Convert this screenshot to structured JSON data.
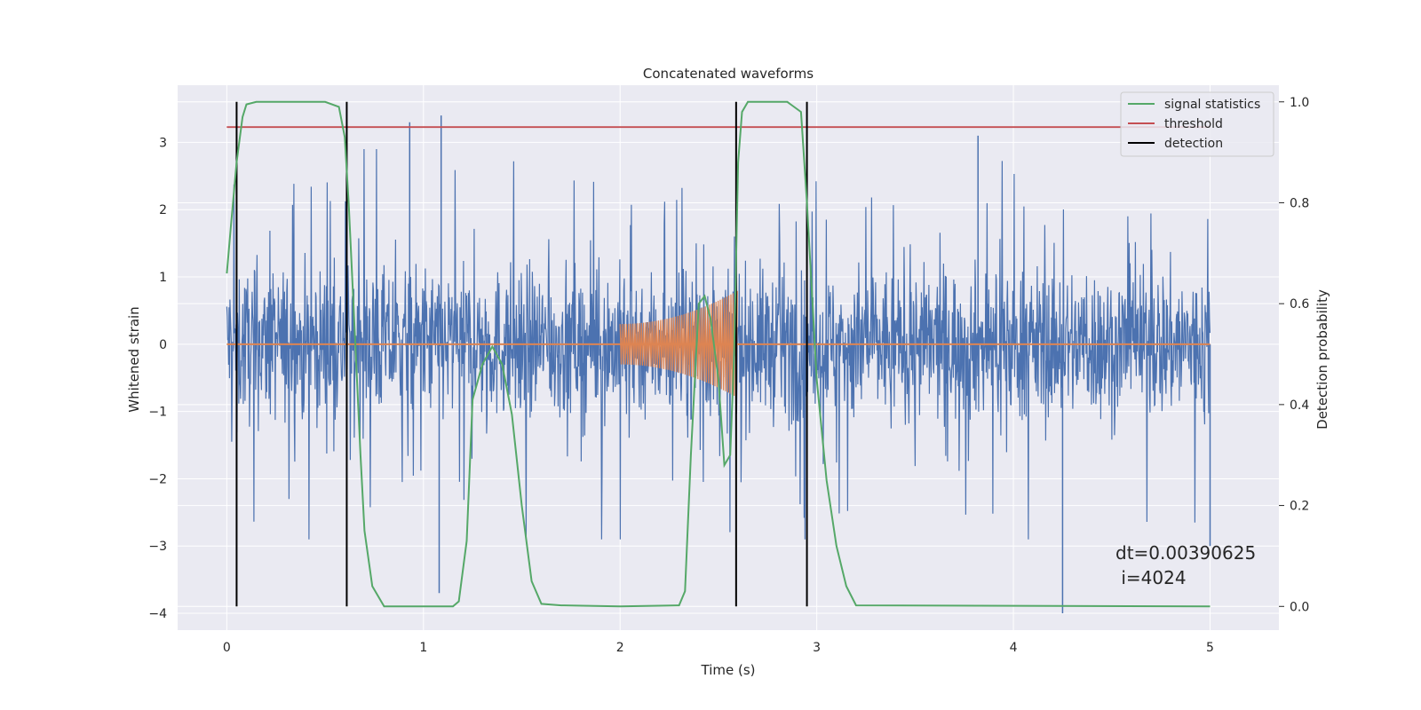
{
  "chart_data": {
    "type": "line",
    "title": "Concatenated waveforms",
    "xlabel": "Time (s)",
    "ylabel": "Whitened strain",
    "y2label": "Detection probability",
    "xlim": [
      -0.25,
      5.35
    ],
    "ylim": [
      -4.25,
      3.85
    ],
    "y2lim": [
      -0.047,
      1.033
    ],
    "x_ticks": [
      0,
      1,
      2,
      3,
      4,
      5
    ],
    "y_ticks": [
      -4,
      -3,
      -2,
      -1,
      0,
      1,
      2,
      3
    ],
    "y2_ticks": [
      0.0,
      0.2,
      0.4,
      0.6,
      0.8,
      1.0
    ],
    "grid": true,
    "legend_position": "top-right",
    "series": [
      {
        "name": "",
        "axis": "left",
        "color": "#4c72b0",
        "kind": "noise",
        "x_range": [
          0,
          5
        ],
        "amplitude_envelope": 2.0,
        "notable_peaks": [
          [
            0.93,
            3.3
          ],
          [
            1.09,
            3.4
          ],
          [
            3.82,
            3.1
          ],
          [
            1.08,
            -3.7
          ],
          [
            4.25,
            -4.0
          ],
          [
            5.0,
            -3.0
          ]
        ]
      },
      {
        "name": "",
        "axis": "left",
        "color": "#dd8452",
        "kind": "chirp",
        "x_range": [
          2.0,
          2.6
        ],
        "start_amplitude": 0.3,
        "end_amplitude": 0.8,
        "baseline": 0
      },
      {
        "name": "signal statistics",
        "axis": "right",
        "color": "#55a868",
        "x": [
          0.0,
          0.02,
          0.05,
          0.08,
          0.1,
          0.15,
          0.5,
          0.57,
          0.6,
          0.62,
          0.65,
          0.68,
          0.7,
          0.74,
          0.8,
          1.15,
          1.18,
          1.22,
          1.25,
          1.3,
          1.35,
          1.4,
          1.45,
          1.5,
          1.55,
          1.6,
          1.7,
          2.0,
          2.3,
          2.33,
          2.36,
          2.4,
          2.43,
          2.46,
          2.5,
          2.53,
          2.56,
          2.58,
          2.6,
          2.62,
          2.65,
          2.7,
          2.85,
          2.92,
          2.95,
          3.0,
          3.05,
          3.1,
          3.15,
          3.2,
          5.0
        ],
        "y": [
          0.66,
          0.75,
          0.88,
          0.97,
          0.995,
          1.0,
          1.0,
          0.99,
          0.93,
          0.8,
          0.55,
          0.3,
          0.15,
          0.04,
          0.0,
          0.0,
          0.01,
          0.13,
          0.41,
          0.48,
          0.515,
          0.48,
          0.38,
          0.2,
          0.05,
          0.005,
          0.002,
          0.0,
          0.002,
          0.03,
          0.3,
          0.6,
          0.615,
          0.57,
          0.45,
          0.28,
          0.3,
          0.5,
          0.88,
          0.98,
          1.0,
          1.0,
          1.0,
          0.98,
          0.8,
          0.45,
          0.25,
          0.12,
          0.04,
          0.002,
          0.0
        ]
      },
      {
        "name": "threshold",
        "axis": "right",
        "color": "#c44e52",
        "x": [
          0,
          5
        ],
        "y": [
          0.95,
          0.95
        ]
      },
      {
        "name": "detection",
        "axis": "right",
        "color": "#000000",
        "kind": "vlines",
        "x": [
          0.05,
          0.61,
          2.59,
          2.95
        ],
        "y_range": [
          0.0,
          1.0
        ]
      }
    ],
    "annotations": [
      "dt=0.00390625",
      " i=4024"
    ]
  }
}
